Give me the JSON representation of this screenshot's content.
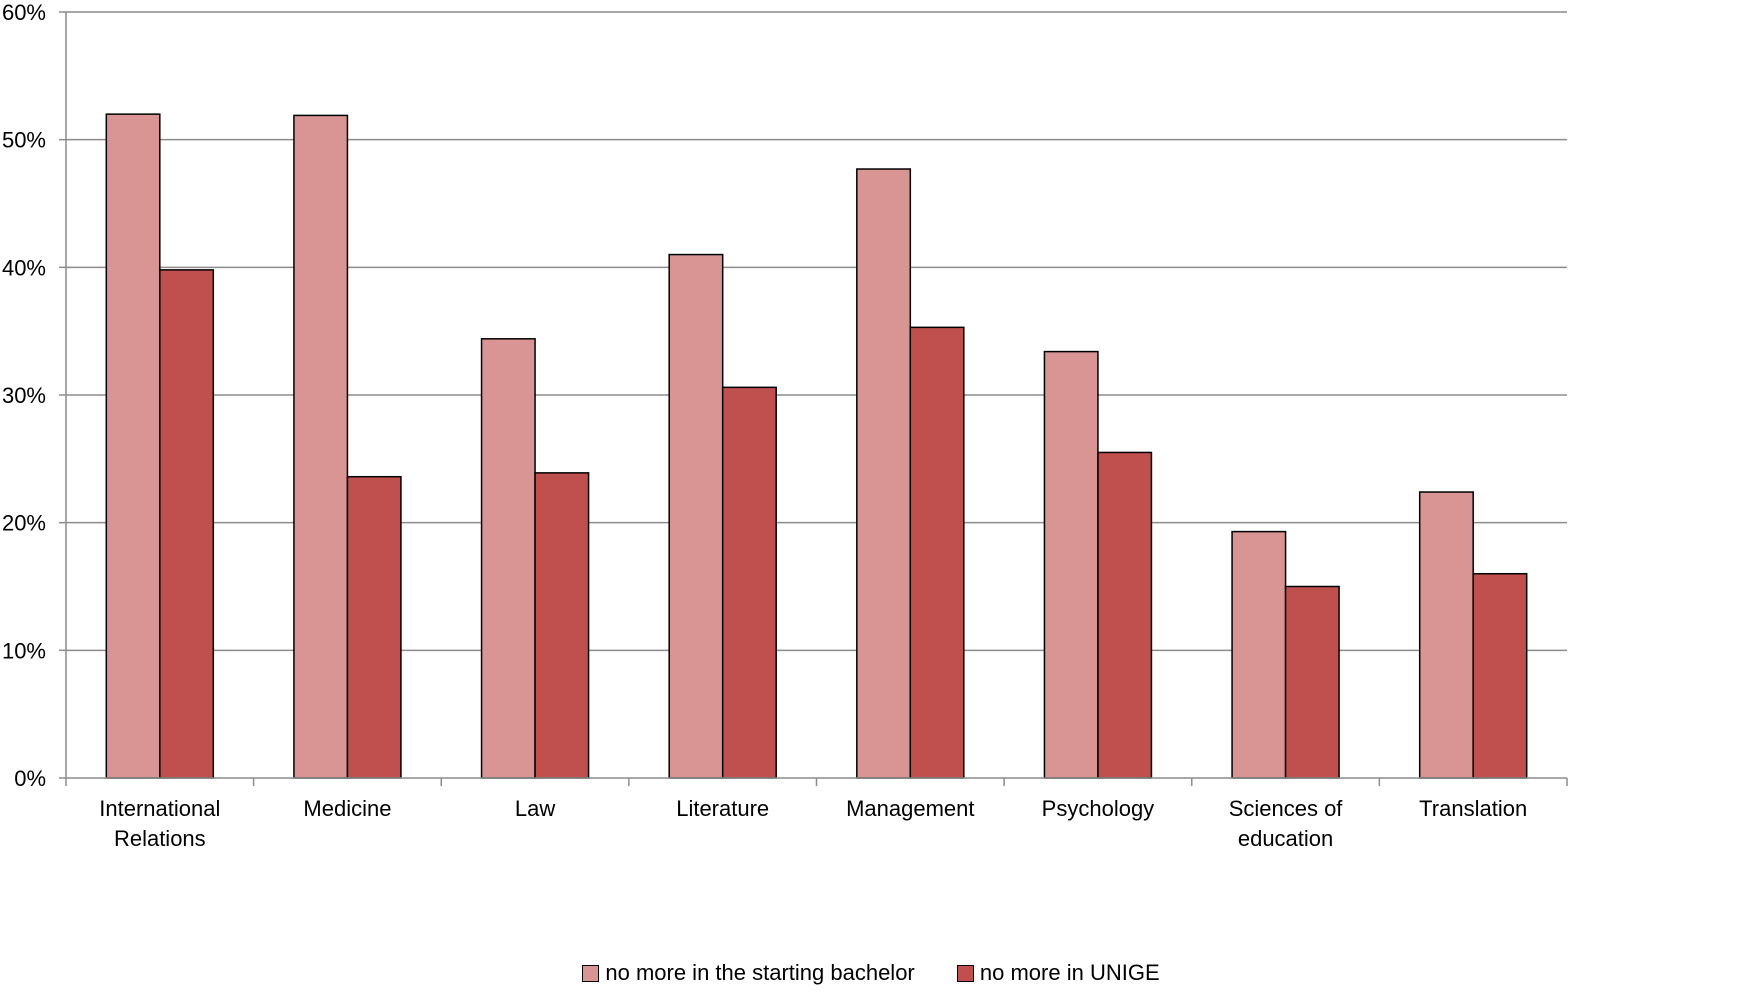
{
  "chart_data": {
    "type": "bar",
    "categories": [
      [
        "International",
        "Relations"
      ],
      [
        "Medicine"
      ],
      [
        "Law"
      ],
      [
        "Literature"
      ],
      [
        "Management"
      ],
      [
        "Psychology"
      ],
      [
        "Sciences of",
        "education"
      ],
      [
        "Translation"
      ]
    ],
    "series": [
      {
        "name": "no more in the starting bachelor",
        "color": "#d99594",
        "values": [
          52.0,
          51.9,
          34.4,
          41.0,
          47.7,
          33.4,
          19.3,
          22.4
        ]
      },
      {
        "name": "no more in UNIGE",
        "color": "#c0504d",
        "values": [
          39.8,
          23.6,
          23.9,
          30.6,
          35.3,
          25.5,
          15.0,
          16.0
        ]
      }
    ],
    "ylim": [
      0,
      60
    ],
    "yticks": [
      0,
      10,
      20,
      30,
      40,
      50,
      60
    ],
    "ytick_labels": [
      "0%",
      "10%",
      "20%",
      "30%",
      "40%",
      "50%",
      "60%"
    ],
    "grid": true,
    "legend_position": "bottom",
    "title": "",
    "xlabel": "",
    "ylabel": ""
  }
}
